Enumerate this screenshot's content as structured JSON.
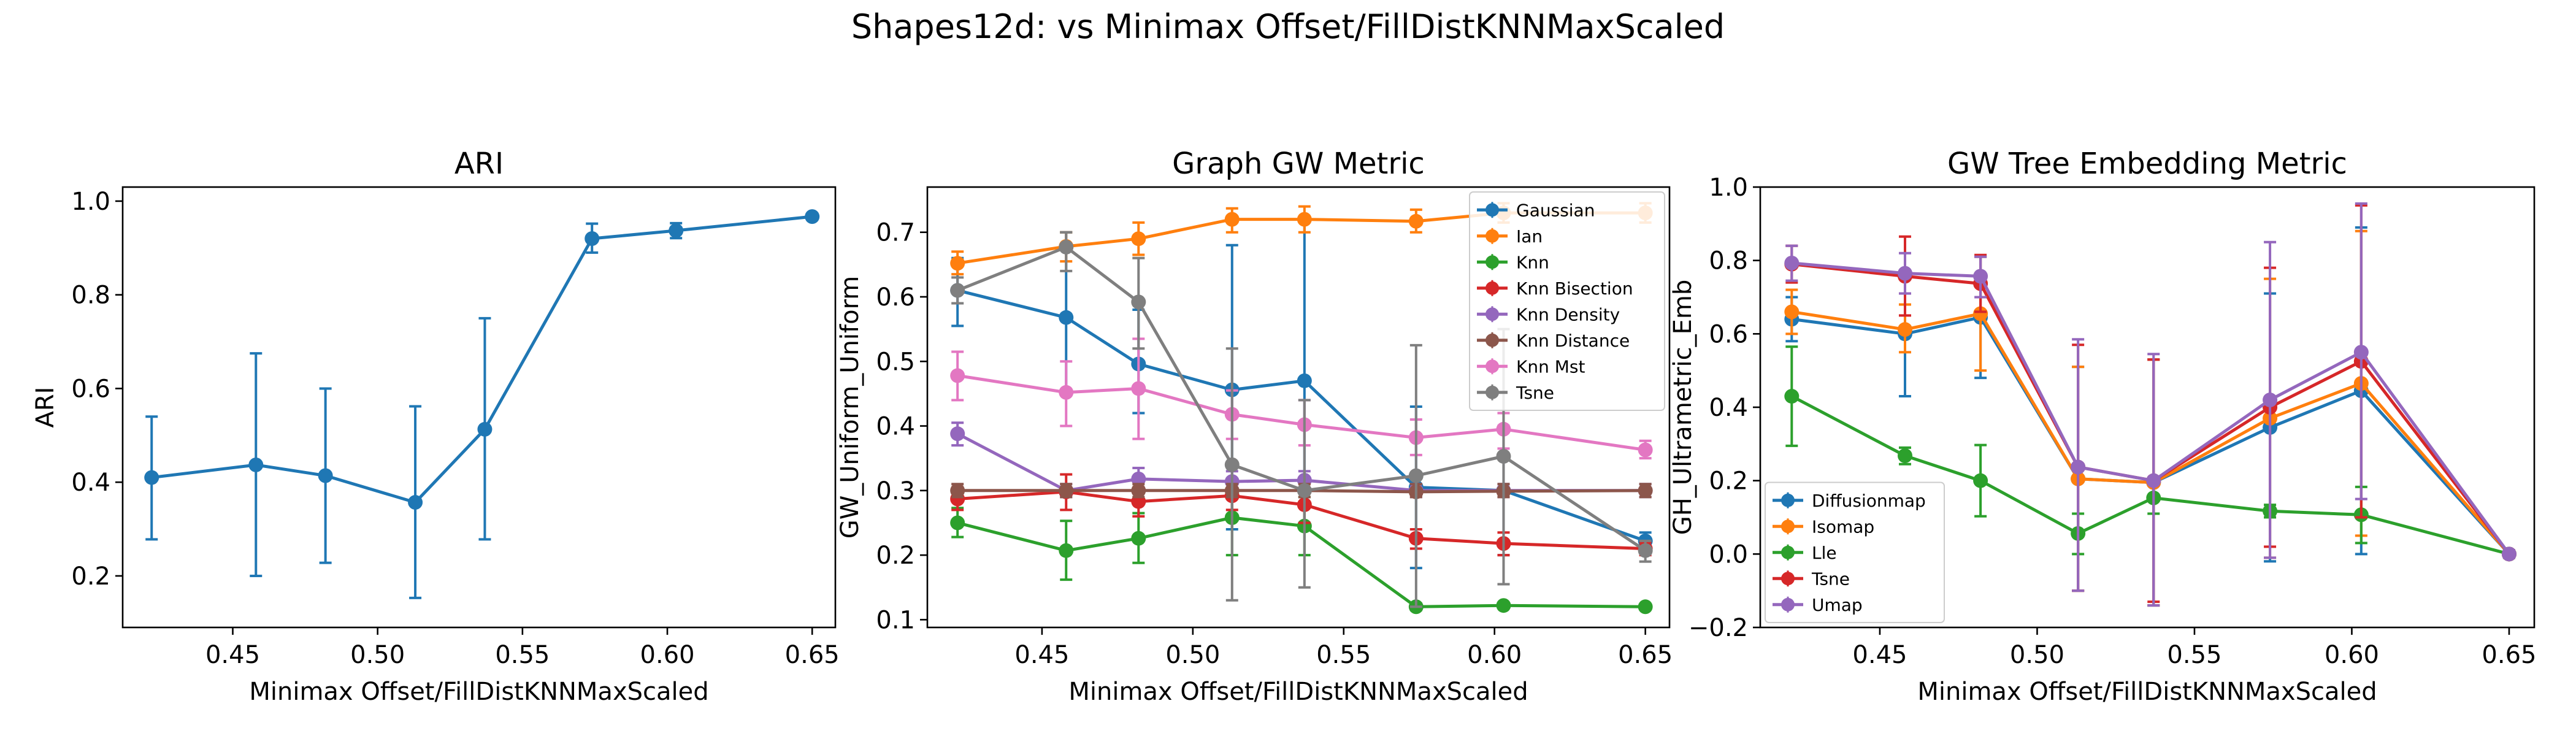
{
  "figure": {
    "suptitle": "Shapes12d: vs Minimax Offset/FillDistKNNMaxScaled"
  },
  "chart_data": [
    {
      "type": "line",
      "title": "ARI",
      "xlabel": "Minimax Offset/FillDistKNNMaxScaled",
      "ylabel": "ARI",
      "xlim": [
        0.412,
        0.658
      ],
      "ylim": [
        0.09,
        1.03
      ],
      "xticks": [
        0.45,
        0.5,
        0.55,
        0.6,
        0.65
      ],
      "xticklabels": [
        "0.45",
        "0.50",
        "0.55",
        "0.60",
        "0.65"
      ],
      "yticks": [
        0.2,
        0.4,
        0.6,
        0.8,
        1.0
      ],
      "yticklabels": [
        "0.2",
        "0.4",
        "0.6",
        "0.8",
        "1.0"
      ],
      "legend": "none",
      "x": [
        0.422,
        0.458,
        0.482,
        0.513,
        0.537,
        0.574,
        0.603,
        0.65
      ],
      "series": [
        {
          "color": "#1f77b4",
          "values": [
            0.41,
            0.437,
            0.414,
            0.357,
            0.513,
            0.92,
            0.937,
            0.967
          ],
          "err_low": [
            0.278,
            0.2,
            0.228,
            0.153,
            0.278,
            0.89,
            0.921,
            0.962
          ],
          "err_high": [
            0.54,
            0.675,
            0.6,
            0.562,
            0.75,
            0.952,
            0.953,
            0.972
          ]
        }
      ]
    },
    {
      "type": "line",
      "title": "Graph GW Metric",
      "xlabel": "Minimax Offset/FillDistKNNMaxScaled",
      "ylabel": "GW_Uniform_Uniform",
      "xlim": [
        0.412,
        0.658
      ],
      "ylim": [
        0.088,
        0.77
      ],
      "xticks": [
        0.45,
        0.5,
        0.55,
        0.6,
        0.65
      ],
      "xticklabels": [
        "0.45",
        "0.50",
        "0.55",
        "0.60",
        "0.65"
      ],
      "yticks": [
        0.1,
        0.2,
        0.3,
        0.4,
        0.5,
        0.6,
        0.7
      ],
      "yticklabels": [
        "0.1",
        "0.2",
        "0.3",
        "0.4",
        "0.5",
        "0.6",
        "0.7"
      ],
      "legend": "upper right",
      "x": [
        0.422,
        0.458,
        0.482,
        0.513,
        0.537,
        0.574,
        0.603,
        0.65
      ],
      "series": [
        {
          "name": "Gaussian",
          "color": "#1f77b4",
          "values": [
            0.61,
            0.568,
            0.496,
            0.456,
            0.47,
            0.305,
            0.3,
            0.222
          ],
          "err_low": [
            0.555,
            0.45,
            0.42,
            0.24,
            0.25,
            0.18,
            0.2,
            0.21
          ],
          "err_high": [
            0.66,
            0.7,
            0.58,
            0.68,
            0.72,
            0.43,
            0.4,
            0.235
          ]
        },
        {
          "name": "Ian",
          "color": "#ff7f0e",
          "values": [
            0.652,
            0.678,
            0.69,
            0.72,
            0.72,
            0.717,
            0.73,
            0.73
          ],
          "err_low": [
            0.635,
            0.655,
            0.665,
            0.7,
            0.7,
            0.7,
            0.715,
            0.715
          ],
          "err_high": [
            0.67,
            0.7,
            0.715,
            0.737,
            0.74,
            0.735,
            0.745,
            0.745
          ]
        },
        {
          "name": "Knn",
          "color": "#2ca02c",
          "values": [
            0.25,
            0.207,
            0.226,
            0.258,
            0.245,
            0.12,
            0.122,
            0.12
          ],
          "err_low": [
            0.228,
            0.162,
            0.188,
            0.2,
            0.2,
            0.115,
            0.118,
            0.117
          ],
          "err_high": [
            0.273,
            0.253,
            0.265,
            0.31,
            0.29,
            0.125,
            0.126,
            0.123
          ]
        },
        {
          "name": "Knn Bisection",
          "color": "#d62728",
          "values": [
            0.287,
            0.298,
            0.283,
            0.292,
            0.278,
            0.226,
            0.218,
            0.21
          ],
          "err_low": [
            0.27,
            0.27,
            0.26,
            0.27,
            0.25,
            0.21,
            0.2,
            0.2
          ],
          "err_high": [
            0.305,
            0.325,
            0.305,
            0.315,
            0.31,
            0.24,
            0.235,
            0.22
          ]
        },
        {
          "name": "Knn Density",
          "color": "#9467bd",
          "values": [
            0.388,
            0.3,
            0.318,
            0.314,
            0.316,
            0.3,
            0.3,
            0.3
          ],
          "err_low": [
            0.37,
            0.29,
            0.3,
            0.3,
            0.3,
            0.29,
            0.29,
            0.29
          ],
          "err_high": [
            0.405,
            0.31,
            0.335,
            0.33,
            0.33,
            0.31,
            0.31,
            0.31
          ]
        },
        {
          "name": "Knn Distance",
          "color": "#8c564b",
          "values": [
            0.3,
            0.3,
            0.3,
            0.3,
            0.3,
            0.298,
            0.299,
            0.3
          ],
          "err_low": [
            0.29,
            0.29,
            0.29,
            0.29,
            0.29,
            0.29,
            0.29,
            0.29
          ],
          "err_high": [
            0.31,
            0.31,
            0.31,
            0.31,
            0.31,
            0.31,
            0.31,
            0.31
          ]
        },
        {
          "name": "Knn Mst",
          "color": "#e377c2",
          "values": [
            0.478,
            0.452,
            0.458,
            0.418,
            0.402,
            0.382,
            0.395,
            0.363
          ],
          "err_low": [
            0.44,
            0.4,
            0.38,
            0.38,
            0.37,
            0.355,
            0.365,
            0.35
          ],
          "err_high": [
            0.515,
            0.5,
            0.535,
            0.455,
            0.44,
            0.41,
            0.42,
            0.377
          ]
        },
        {
          "name": "Tsne",
          "color": "#7f7f7f",
          "values": [
            0.61,
            0.677,
            0.592,
            0.34,
            0.3,
            0.323,
            0.353,
            0.207
          ],
          "err_low": [
            0.59,
            0.64,
            0.52,
            0.13,
            0.15,
            0.12,
            0.155,
            0.19
          ],
          "err_high": [
            0.63,
            0.7,
            0.66,
            0.52,
            0.44,
            0.525,
            0.55,
            0.222
          ]
        }
      ]
    },
    {
      "type": "line",
      "title": "GW Tree Embedding Metric",
      "xlabel": "Minimax Offset/FillDistKNNMaxScaled",
      "ylabel": "GH_Ultrametric_Emb",
      "xlim": [
        0.412,
        0.658
      ],
      "ylim": [
        -0.2,
        1.0
      ],
      "xticks": [
        0.45,
        0.5,
        0.55,
        0.6,
        0.65
      ],
      "xticklabels": [
        "0.45",
        "0.50",
        "0.55",
        "0.60",
        "0.65"
      ],
      "yticks": [
        -0.2,
        0.0,
        0.2,
        0.4,
        0.6,
        0.8,
        1.0
      ],
      "yticklabels": [
        "−0.2",
        "0.0",
        "0.2",
        "0.4",
        "0.6",
        "0.8",
        "1.0"
      ],
      "legend": "lower left",
      "x": [
        0.422,
        0.458,
        0.482,
        0.513,
        0.537,
        0.574,
        0.603,
        0.65
      ],
      "series": [
        {
          "name": "Diffusionmap",
          "color": "#1f77b4",
          "values": [
            0.64,
            0.6,
            0.645,
            0.205,
            0.195,
            0.345,
            0.445,
            0.0
          ],
          "err_low": [
            0.58,
            0.43,
            0.48,
            -0.1,
            -0.14,
            -0.02,
            0.0,
            -0.01
          ],
          "err_high": [
            0.7,
            0.77,
            0.81,
            0.51,
            0.53,
            0.71,
            0.89,
            0.01
          ]
        },
        {
          "name": "Isomap",
          "color": "#ff7f0e",
          "values": [
            0.66,
            0.612,
            0.655,
            0.205,
            0.195,
            0.37,
            0.465,
            0.0
          ],
          "err_low": [
            0.6,
            0.55,
            0.5,
            -0.1,
            -0.14,
            -0.01,
            0.05,
            -0.01
          ],
          "err_high": [
            0.72,
            0.68,
            0.81,
            0.51,
            0.53,
            0.75,
            0.88,
            0.01
          ]
        },
        {
          "name": "Lle",
          "color": "#2ca02c",
          "values": [
            0.43,
            0.268,
            0.2,
            0.056,
            0.153,
            0.117,
            0.107,
            0.0
          ],
          "err_low": [
            0.295,
            0.245,
            0.103,
            0.0,
            0.11,
            0.1,
            0.03,
            -0.01
          ],
          "err_high": [
            0.565,
            0.29,
            0.297,
            0.11,
            0.195,
            0.134,
            0.183,
            0.01
          ]
        },
        {
          "name": "Tsne",
          "color": "#d62728",
          "values": [
            0.79,
            0.757,
            0.737,
            0.237,
            0.2,
            0.4,
            0.525,
            0.0
          ],
          "err_low": [
            0.74,
            0.65,
            0.66,
            -0.1,
            -0.13,
            0.02,
            0.1,
            -0.01
          ],
          "err_high": [
            0.84,
            0.865,
            0.815,
            0.57,
            0.53,
            0.78,
            0.95,
            0.01
          ]
        },
        {
          "name": "Umap",
          "color": "#9467bd",
          "values": [
            0.793,
            0.765,
            0.757,
            0.237,
            0.2,
            0.42,
            0.55,
            0.0
          ],
          "err_low": [
            0.745,
            0.71,
            0.7,
            -0.1,
            -0.14,
            -0.01,
            0.15,
            -0.01
          ],
          "err_high": [
            0.84,
            0.82,
            0.81,
            0.585,
            0.545,
            0.85,
            0.955,
            0.01
          ]
        }
      ]
    }
  ]
}
